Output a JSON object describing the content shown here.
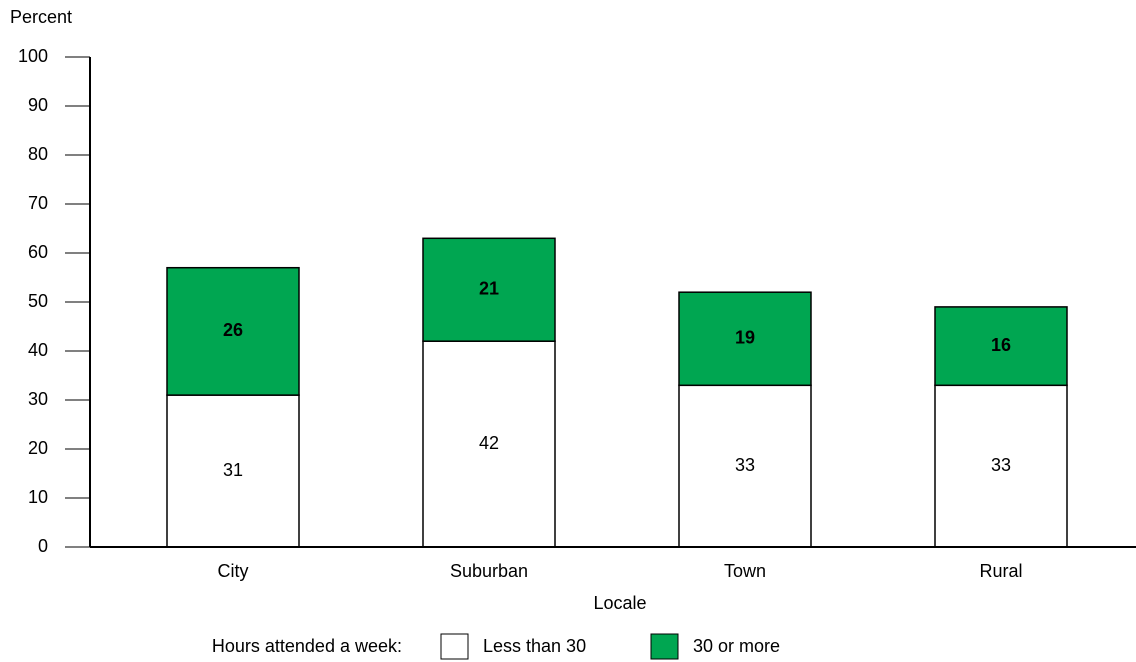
{
  "chart_data": {
    "type": "stacked_bar",
    "y_label": "Percent",
    "x_label": "Locale",
    "legend_title": "Hours attended a week:",
    "categories": [
      "City",
      "Suburban",
      "Town",
      "Rural"
    ],
    "series": [
      {
        "name": "Less than 30",
        "color": "#ffffff",
        "values": [
          31,
          42,
          33,
          33
        ]
      },
      {
        "name": "30 or more",
        "color": "#00a651",
        "values": [
          26,
          21,
          19,
          16
        ]
      }
    ],
    "ylim": [
      0,
      100
    ],
    "yticks": [
      0,
      10,
      20,
      30,
      40,
      50,
      60,
      70,
      80,
      90,
      100
    ],
    "legend": "bottom"
  }
}
